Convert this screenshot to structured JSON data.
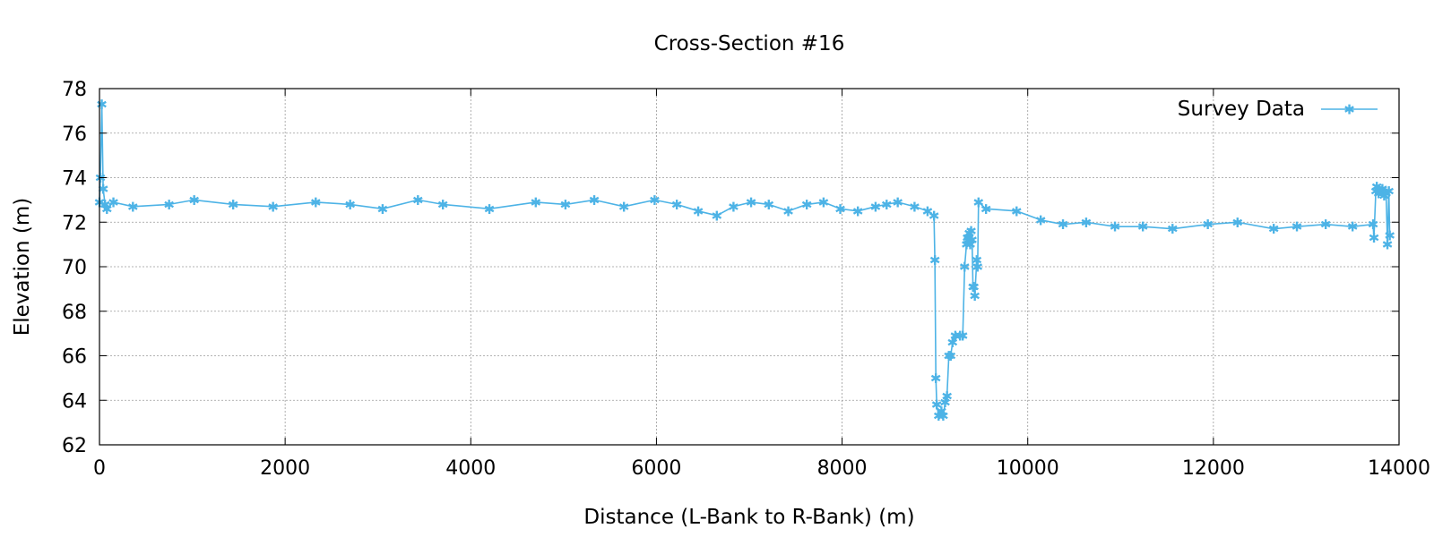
{
  "chart_data": {
    "type": "line",
    "title": "Cross-Section #16",
    "xlabel": "Distance (L-Bank to R-Bank) (m)",
    "ylabel": "Elevation (m)",
    "xlim": [
      0,
      14000
    ],
    "ylim": [
      62,
      78
    ],
    "xticks": [
      0,
      2000,
      4000,
      6000,
      8000,
      10000,
      12000,
      14000
    ],
    "yticks": [
      62,
      64,
      66,
      68,
      70,
      72,
      74,
      76,
      78
    ],
    "grid": true,
    "legend_position": "top-right",
    "color": "#4db3e6",
    "series": [
      {
        "name": "Survey Data",
        "points": [
          [
            0,
            72.9
          ],
          [
            10,
            74.0
          ],
          [
            25,
            77.3
          ],
          [
            40,
            73.5
          ],
          [
            60,
            72.8
          ],
          [
            80,
            72.6
          ],
          [
            150,
            72.9
          ],
          [
            360,
            72.7
          ],
          [
            750,
            72.8
          ],
          [
            1020,
            73.0
          ],
          [
            1440,
            72.8
          ],
          [
            1870,
            72.7
          ],
          [
            2330,
            72.9
          ],
          [
            2700,
            72.8
          ],
          [
            3050,
            72.6
          ],
          [
            3430,
            73.0
          ],
          [
            3700,
            72.8
          ],
          [
            4200,
            72.6
          ],
          [
            4700,
            72.9
          ],
          [
            5020,
            72.8
          ],
          [
            5330,
            73.0
          ],
          [
            5650,
            72.7
          ],
          [
            5980,
            73.0
          ],
          [
            6220,
            72.8
          ],
          [
            6450,
            72.5
          ],
          [
            6650,
            72.3
          ],
          [
            6830,
            72.7
          ],
          [
            7020,
            72.9
          ],
          [
            7210,
            72.8
          ],
          [
            7420,
            72.5
          ],
          [
            7620,
            72.8
          ],
          [
            7800,
            72.9
          ],
          [
            7980,
            72.6
          ],
          [
            8170,
            72.5
          ],
          [
            8360,
            72.7
          ],
          [
            8480,
            72.8
          ],
          [
            8600,
            72.9
          ],
          [
            8780,
            72.7
          ],
          [
            8920,
            72.5
          ],
          [
            8990,
            72.3
          ],
          [
            9000,
            70.3
          ],
          [
            9010,
            65.0
          ],
          [
            9020,
            63.8
          ],
          [
            9040,
            63.3
          ],
          [
            9070,
            63.5
          ],
          [
            9090,
            63.3
          ],
          [
            9110,
            63.9
          ],
          [
            9130,
            64.2
          ],
          [
            9150,
            66.0
          ],
          [
            9170,
            66.0
          ],
          [
            9190,
            66.6
          ],
          [
            9220,
            66.9
          ],
          [
            9270,
            66.9
          ],
          [
            9300,
            66.9
          ],
          [
            9320,
            70.0
          ],
          [
            9340,
            71.0
          ],
          [
            9350,
            71.3
          ],
          [
            9360,
            71.2
          ],
          [
            9370,
            71.5
          ],
          [
            9380,
            71.0
          ],
          [
            9390,
            71.6
          ],
          [
            9400,
            71.2
          ],
          [
            9410,
            69.1
          ],
          [
            9420,
            69.1
          ],
          [
            9430,
            68.7
          ],
          [
            9450,
            70.3
          ],
          [
            9460,
            70.0
          ],
          [
            9470,
            72.9
          ],
          [
            9550,
            72.6
          ],
          [
            9880,
            72.5
          ],
          [
            10140,
            72.1
          ],
          [
            10380,
            71.9
          ],
          [
            10630,
            72.0
          ],
          [
            10940,
            71.8
          ],
          [
            11240,
            71.8
          ],
          [
            11560,
            71.7
          ],
          [
            11940,
            71.9
          ],
          [
            12260,
            72.0
          ],
          [
            12650,
            71.7
          ],
          [
            12900,
            71.8
          ],
          [
            13210,
            71.9
          ],
          [
            13500,
            71.8
          ],
          [
            13720,
            71.9
          ],
          [
            13730,
            71.3
          ],
          [
            13750,
            73.4
          ],
          [
            13760,
            73.6
          ],
          [
            13780,
            73.3
          ],
          [
            13800,
            73.4
          ],
          [
            13820,
            73.5
          ],
          [
            13840,
            73.2
          ],
          [
            13860,
            73.3
          ],
          [
            13875,
            71.0
          ],
          [
            13890,
            73.4
          ],
          [
            13900,
            71.4
          ]
        ]
      }
    ]
  }
}
